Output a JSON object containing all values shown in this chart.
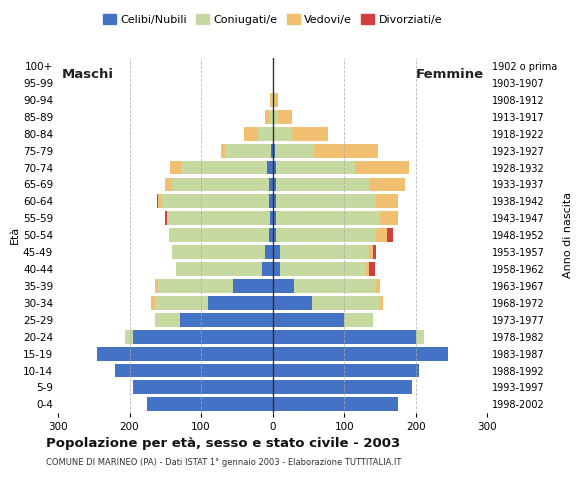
{
  "age_groups": [
    "0-4",
    "5-9",
    "10-14",
    "15-19",
    "20-24",
    "25-29",
    "30-34",
    "35-39",
    "40-44",
    "45-49",
    "50-54",
    "55-59",
    "60-64",
    "65-69",
    "70-74",
    "75-79",
    "80-84",
    "85-89",
    "90-94",
    "95-99",
    "100+"
  ],
  "birth_years": [
    "1998-2002",
    "1993-1997",
    "1988-1992",
    "1983-1987",
    "1978-1982",
    "1973-1977",
    "1968-1972",
    "1963-1967",
    "1958-1962",
    "1953-1957",
    "1948-1952",
    "1943-1947",
    "1938-1942",
    "1933-1937",
    "1928-1932",
    "1923-1927",
    "1918-1922",
    "1913-1917",
    "1908-1912",
    "1903-1907",
    "1902 o prima"
  ],
  "male": {
    "celibi": [
      175,
      195,
      220,
      245,
      195,
      130,
      90,
      55,
      15,
      10,
      5,
      3,
      5,
      5,
      8,
      2,
      0,
      0,
      0,
      0,
      0
    ],
    "coniugati": [
      0,
      0,
      0,
      0,
      12,
      35,
      75,
      105,
      120,
      130,
      140,
      145,
      150,
      135,
      120,
      65,
      20,
      5,
      2,
      0,
      0
    ],
    "vedovi": [
      0,
      0,
      0,
      0,
      0,
      0,
      5,
      5,
      0,
      0,
      0,
      0,
      5,
      10,
      15,
      5,
      20,
      5,
      2,
      0,
      0
    ],
    "divorziati": [
      0,
      0,
      0,
      0,
      0,
      0,
      0,
      0,
      0,
      0,
      0,
      2,
      2,
      0,
      0,
      0,
      0,
      0,
      0,
      0,
      0
    ]
  },
  "female": {
    "nubili": [
      175,
      195,
      205,
      245,
      200,
      100,
      55,
      30,
      10,
      10,
      5,
      5,
      5,
      5,
      5,
      3,
      2,
      2,
      0,
      0,
      0
    ],
    "coniugate": [
      0,
      0,
      0,
      0,
      12,
      40,
      95,
      115,
      120,
      125,
      140,
      145,
      140,
      130,
      110,
      55,
      25,
      5,
      2,
      0,
      0
    ],
    "vedove": [
      0,
      0,
      0,
      0,
      0,
      0,
      5,
      5,
      5,
      5,
      15,
      25,
      30,
      50,
      75,
      90,
      50,
      20,
      5,
      2,
      0
    ],
    "divorziate": [
      0,
      0,
      0,
      0,
      0,
      0,
      0,
      0,
      8,
      5,
      8,
      0,
      0,
      0,
      0,
      0,
      0,
      0,
      0,
      0,
      0
    ]
  },
  "colors": {
    "celibi": "#4472c4",
    "coniugati": "#c5d9a0",
    "vedovi": "#f0c070",
    "divorziati": "#d04040"
  },
  "xlim": 300,
  "title": "Popolazione per età, sesso e stato civile - 2003",
  "subtitle": "COMUNE DI MARINEO (PA) - Dati ISTAT 1° gennaio 2003 - Elaborazione TUTTITALIA.IT",
  "legend_labels": [
    "Celibi/Nubili",
    "Coniugati/e",
    "Vedovi/e",
    "Divorziati/e"
  ],
  "background_color": "#ffffff"
}
